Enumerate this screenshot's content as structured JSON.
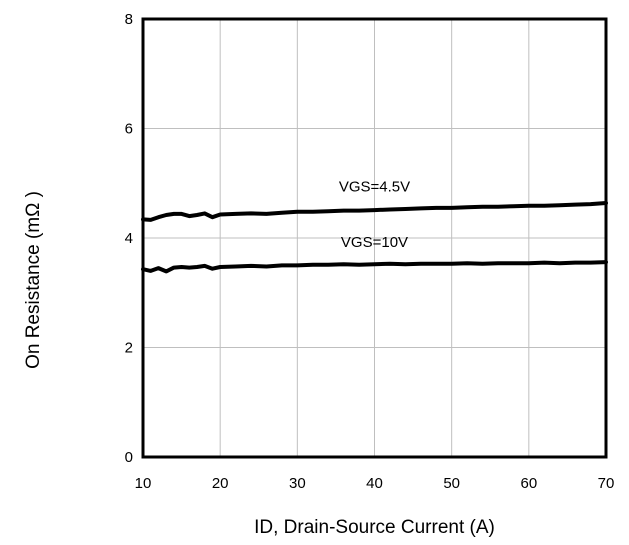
{
  "chart_data": {
    "type": "line",
    "title": "",
    "xlabel": "ID, Drain-Source Current (A)",
    "ylabel": "On Resistance (mΩ )",
    "xlim": [
      10,
      70
    ],
    "ylim": [
      0,
      8
    ],
    "x_ticks": [
      "10",
      "20",
      "30",
      "40",
      "50",
      "60",
      "70"
    ],
    "y_ticks": [
      "0",
      "2",
      "4",
      "6",
      "8"
    ],
    "grid": true,
    "legend": "none",
    "series": [
      {
        "name": "VGS=4.5V",
        "x": [
          10,
          11,
          12,
          13,
          14,
          15,
          16,
          17,
          18,
          19,
          20,
          22,
          24,
          26,
          28,
          30,
          32,
          34,
          36,
          38,
          40,
          42,
          44,
          46,
          48,
          50,
          52,
          54,
          56,
          58,
          60,
          62,
          64,
          66,
          68,
          70
        ],
        "y": [
          4.34,
          4.33,
          4.38,
          4.42,
          4.44,
          4.44,
          4.4,
          4.42,
          4.45,
          4.38,
          4.43,
          4.44,
          4.45,
          4.44,
          4.46,
          4.48,
          4.48,
          4.49,
          4.5,
          4.5,
          4.51,
          4.52,
          4.53,
          4.54,
          4.55,
          4.55,
          4.56,
          4.57,
          4.57,
          4.58,
          4.59,
          4.59,
          4.6,
          4.61,
          4.62,
          4.64
        ]
      },
      {
        "name": "VGS=10V",
        "x": [
          10,
          11,
          12,
          13,
          14,
          15,
          16,
          17,
          18,
          19,
          20,
          22,
          24,
          26,
          28,
          30,
          32,
          34,
          36,
          38,
          40,
          42,
          44,
          46,
          48,
          50,
          52,
          54,
          56,
          58,
          60,
          62,
          64,
          66,
          68,
          70
        ],
        "y": [
          3.43,
          3.4,
          3.45,
          3.39,
          3.46,
          3.47,
          3.46,
          3.47,
          3.49,
          3.44,
          3.47,
          3.48,
          3.49,
          3.48,
          3.5,
          3.5,
          3.51,
          3.51,
          3.52,
          3.51,
          3.52,
          3.53,
          3.52,
          3.53,
          3.53,
          3.53,
          3.54,
          3.53,
          3.54,
          3.54,
          3.54,
          3.55,
          3.54,
          3.55,
          3.55,
          3.56
        ]
      }
    ],
    "annotations": [
      {
        "text": "VGS=4.5V",
        "x": 40,
        "y": 4.85
      },
      {
        "text": "VGS=10V",
        "x": 40,
        "y": 3.84
      }
    ],
    "colors": {
      "line": "#000000",
      "grid": "#bfbfbf",
      "frame": "#000000"
    }
  }
}
